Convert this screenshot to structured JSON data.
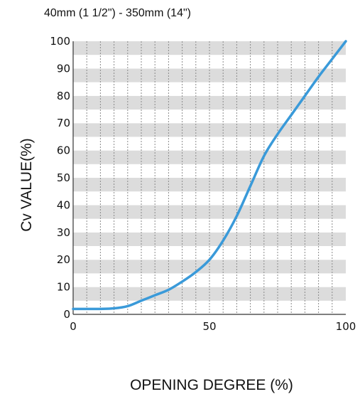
{
  "chart_data": {
    "type": "line",
    "title": "40mm (1 1/2\") - 350mm (14\")",
    "xlabel": "OPENING DEGREE (%)",
    "ylabel": "Cv VALUE(%)",
    "xlim": [
      0,
      100
    ],
    "ylim": [
      0,
      100
    ],
    "x_ticks": [
      "0",
      "50",
      "100"
    ],
    "y_ticks": [
      "0",
      "10",
      "20",
      "30",
      "40",
      "50",
      "60",
      "70",
      "80",
      "90",
      "100"
    ],
    "grid": true,
    "series": [
      {
        "color": "#3a9ad9",
        "x": [
          0,
          5,
          10,
          15,
          20,
          25,
          30,
          35,
          40,
          45,
          50,
          55,
          60,
          65,
          70,
          75,
          80,
          85,
          90,
          95,
          100
        ],
        "y": [
          2,
          2,
          2,
          2.2,
          3,
          5,
          7,
          9,
          12,
          15.5,
          20,
          27,
          36,
          47,
          58,
          66,
          73,
          80,
          87,
          93.5,
          100
        ]
      }
    ]
  }
}
